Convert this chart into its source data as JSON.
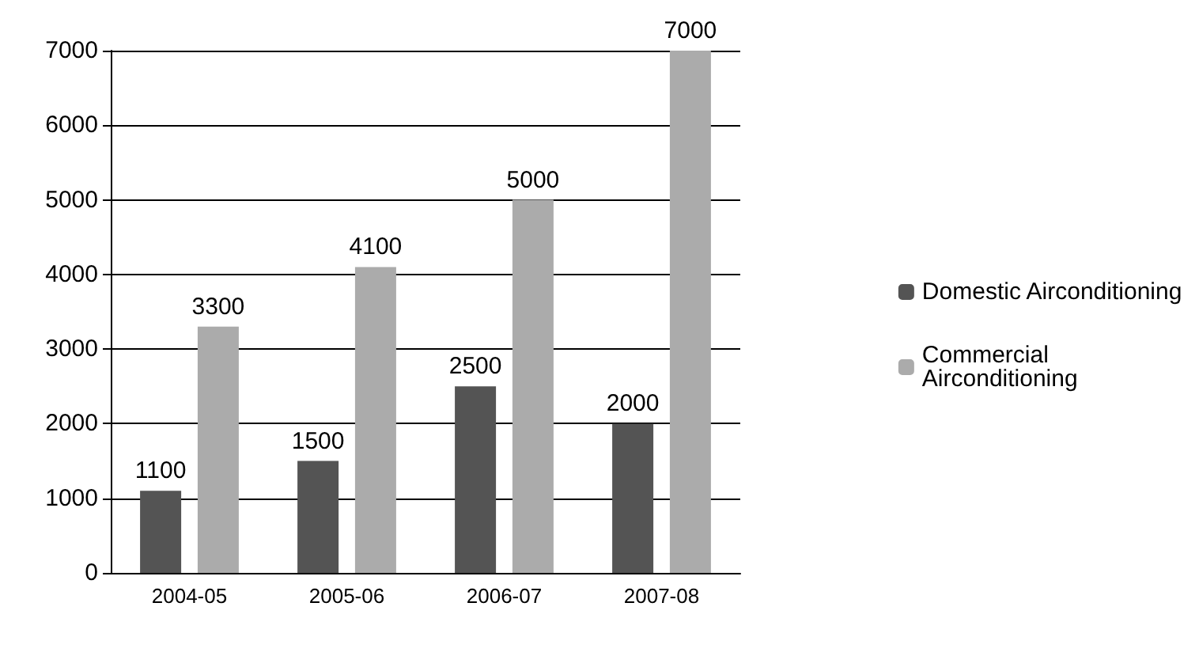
{
  "chart_data": {
    "type": "bar",
    "categories": [
      "2004-05",
      "2005-06",
      "2006-07",
      "2007-08"
    ],
    "series": [
      {
        "name": "Domestic Airconditioning",
        "color": "#545454",
        "values": [
          1100,
          1500,
          2500,
          2000
        ]
      },
      {
        "name": "Commercial Airconditioning",
        "color": "#ababab",
        "values": [
          3300,
          4100,
          5000,
          7000
        ]
      }
    ],
    "ylim": [
      0,
      7000
    ],
    "yticks": [
      0,
      1000,
      2000,
      3000,
      4000,
      5000,
      6000,
      7000
    ],
    "grid": "y",
    "legend": "right",
    "data_labels": true
  }
}
